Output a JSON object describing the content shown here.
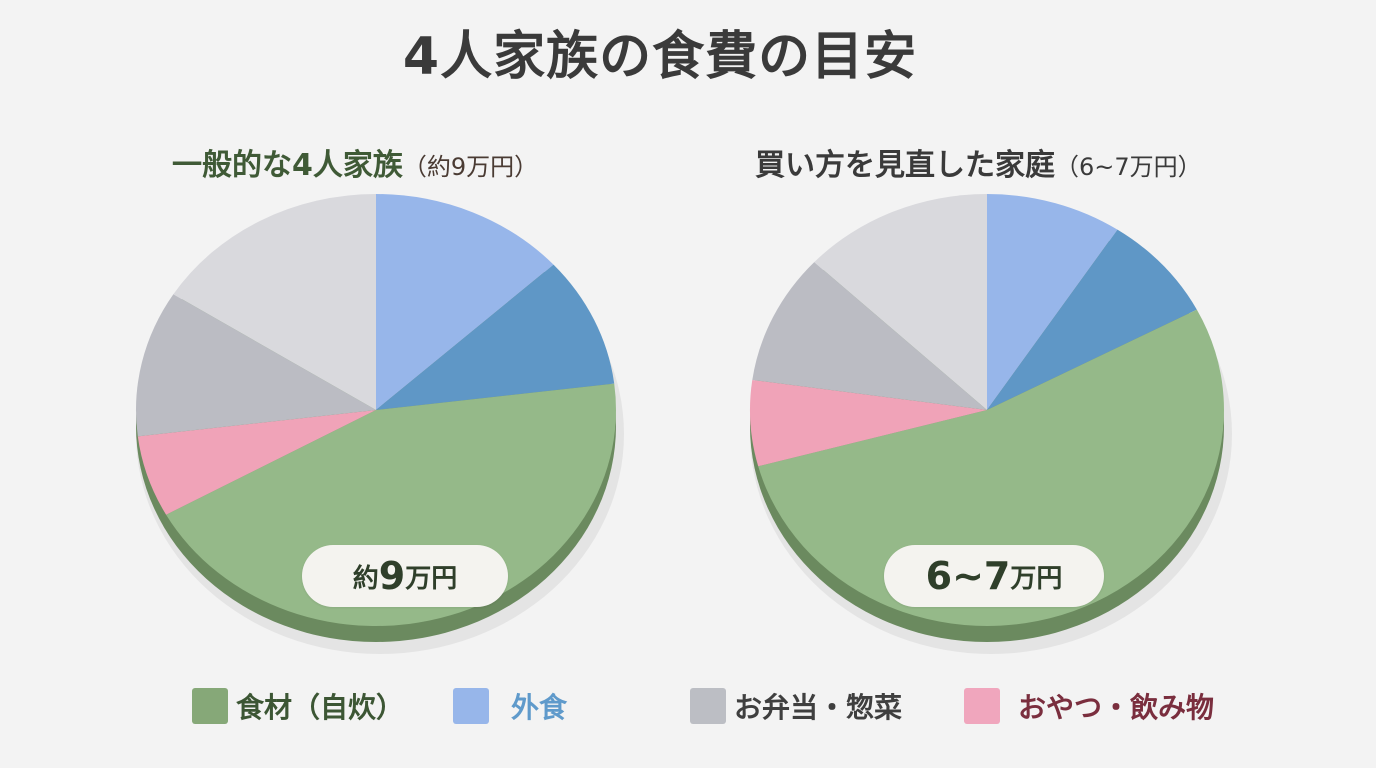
{
  "title": "4人家族の食費の目安",
  "left_chart": {
    "heading": "一般的な4人家族",
    "heading_paren": "（約9万円）",
    "pill_prefix": "約",
    "pill_number": "9",
    "pill_suffix": "万円"
  },
  "right_chart": {
    "heading": "買い方を見直した家庭",
    "heading_paren": "（6~7万円）",
    "pill_number": "6~7",
    "pill_suffix": "万円"
  },
  "legend": [
    {
      "label": "食材（自炊）",
      "color": "#86a878",
      "text_color": "#3c5634"
    },
    {
      "label": "外食",
      "color": "#97b6ea",
      "text_color": "#5f9acb"
    },
    {
      "label": "お弁当・惣菜",
      "color": "#bcbec4",
      "text_color": "#3f3f3f"
    },
    {
      "label": "おやつ・飲み物",
      "color": "#f0a6bd",
      "text_color": "#7a2e3e"
    }
  ],
  "chart_data": [
    {
      "type": "pie",
      "title": "一般的な4人家族（約9万円）",
      "center_label": "約9万円",
      "slices": [
        {
          "name": "外食 (light)",
          "category": "外食",
          "degrees": 47.7,
          "percent": 13.3,
          "color": "#97b6ea"
        },
        {
          "name": "外食 (dark)",
          "category": "外食",
          "degrees": 35.3,
          "percent": 9.8,
          "color": "#5f97c6"
        },
        {
          "name": "食材（自炊）",
          "category": "食材（自炊）",
          "degrees": 158.0,
          "percent": 43.9,
          "color": "#95b989"
        },
        {
          "name": "おやつ・飲み物",
          "category": "おやつ・飲み物",
          "degrees": 22.0,
          "percent": 6.1,
          "color": "#f0a3b8"
        },
        {
          "name": "お弁当・惣菜 (dark)",
          "category": "お弁当・惣菜",
          "degrees": 39.4,
          "percent": 10.9,
          "color": "#bbbcc3"
        },
        {
          "name": "お弁当・惣菜 (light)",
          "category": "お弁当・惣菜",
          "degrees": 57.6,
          "percent": 16.0,
          "color": "#d9d9dd"
        }
      ],
      "legend_position": "bottom"
    },
    {
      "type": "pie",
      "title": "買い方を見直した家庭（6~7万円）",
      "center_label": "6~7万円",
      "slices": [
        {
          "name": "外食 (light)",
          "category": "外食",
          "degrees": 33.4,
          "percent": 9.3,
          "color": "#97b6ea"
        },
        {
          "name": "外食 (dark)",
          "category": "外食",
          "degrees": 28.9,
          "percent": 8.0,
          "color": "#5f97c6"
        },
        {
          "name": "食材（自炊）",
          "category": "食材（自炊）",
          "degrees": 192.6,
          "percent": 53.5,
          "color": "#95b989"
        },
        {
          "name": "おやつ・飲み物",
          "category": "おやつ・飲み物",
          "degrees": 23.1,
          "percent": 6.4,
          "color": "#f0a3b8"
        },
        {
          "name": "お弁当・惣菜 (dark)",
          "category": "お弁当・惣菜",
          "degrees": 35.2,
          "percent": 9.8,
          "color": "#bbbcc3"
        },
        {
          "name": "お弁当・惣菜 (light)",
          "category": "お弁当・惣菜",
          "degrees": 46.8,
          "percent": 13.0,
          "color": "#d9d9dd"
        }
      ],
      "legend_position": "bottom"
    }
  ]
}
